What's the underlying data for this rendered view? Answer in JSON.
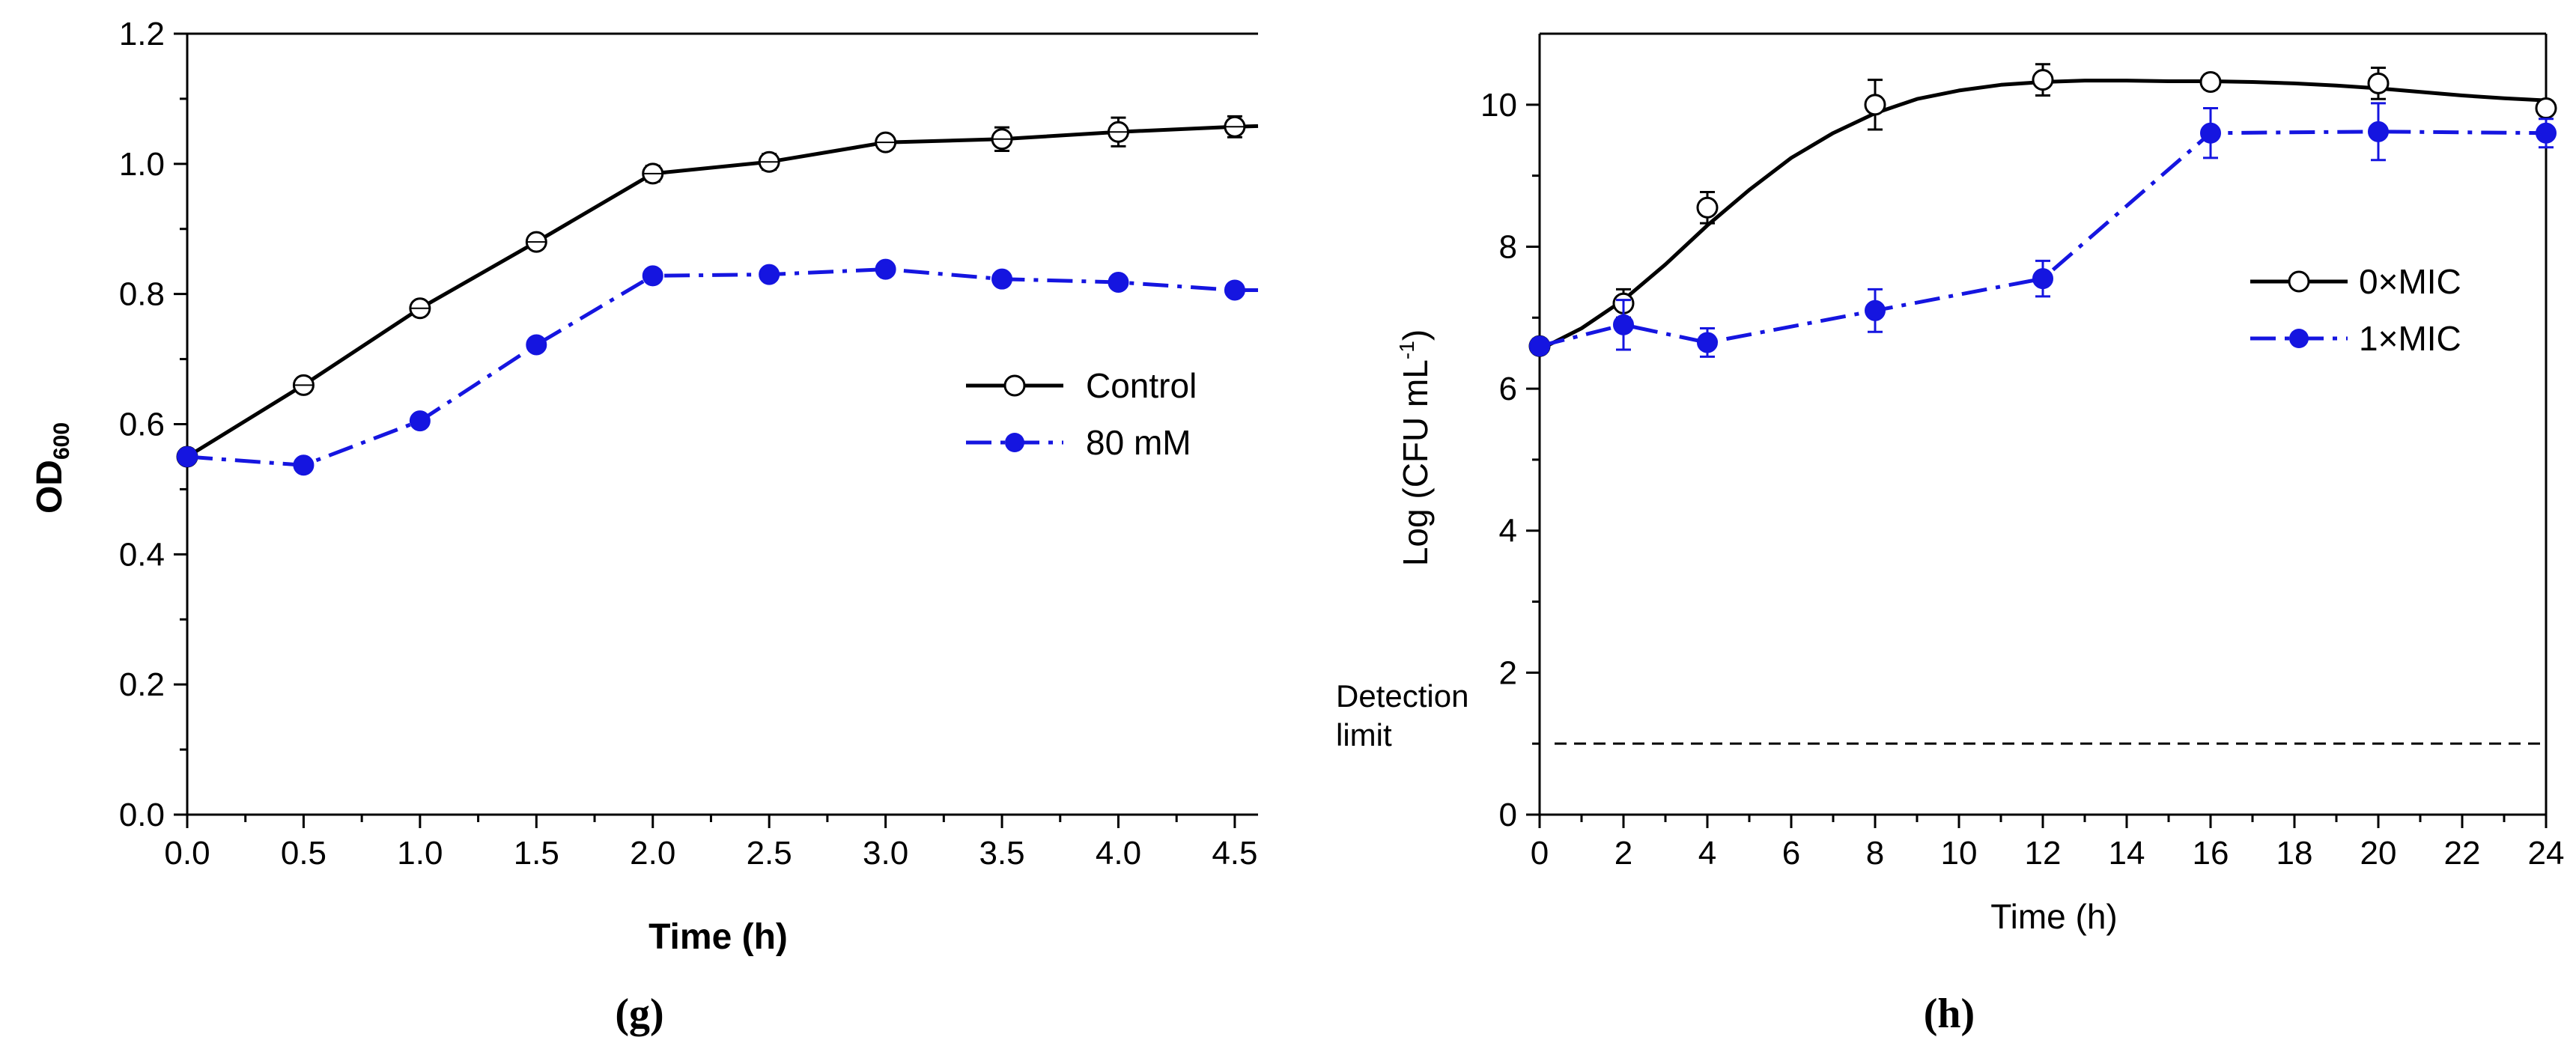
{
  "chart_data": [
    {
      "type": "line",
      "panel_label": "(g)",
      "xlabel": "Time (h)",
      "ylabel": "OD",
      "ylabel_sub": "600",
      "xlim": [
        0,
        4.6
      ],
      "ylim": [
        0,
        1.2
      ],
      "xticks": [
        "0.0",
        "0.5",
        "1.0",
        "1.5",
        "2.0",
        "2.5",
        "3.0",
        "3.5",
        "4.0",
        "4.5"
      ],
      "yticks": [
        "0.0",
        "0.2",
        "0.4",
        "0.6",
        "0.8",
        "1.0",
        "1.2"
      ],
      "legend_position": "center-right",
      "series": [
        {
          "name": "Control",
          "color": "#000000",
          "marker": "open-circle",
          "line": "solid",
          "x": [
            0,
            0.5,
            1.0,
            1.5,
            2.0,
            2.5,
            3.0,
            3.5,
            4.0,
            4.5,
            4.6
          ],
          "y": [
            0.55,
            0.66,
            0.778,
            0.88,
            0.985,
            1.003,
            1.033,
            1.038,
            1.049,
            1.057,
            1.058
          ],
          "err": [
            0.0,
            0.008,
            0.008,
            0.008,
            0.012,
            0.012,
            0.01,
            0.018,
            0.022,
            0.016,
            0
          ],
          "markers": [
            true,
            true,
            true,
            true,
            true,
            true,
            true,
            true,
            true,
            true,
            false
          ]
        },
        {
          "name": "80 mM",
          "color": "#1515e0",
          "marker": "filled-circle",
          "line": "dash-dot",
          "x": [
            0,
            0.5,
            1.0,
            1.5,
            2.0,
            2.5,
            3.0,
            3.5,
            4.0,
            4.5,
            4.6
          ],
          "y": [
            0.55,
            0.537,
            0.605,
            0.722,
            0.828,
            0.83,
            0.838,
            0.823,
            0.818,
            0.806,
            0.806
          ],
          "err": [
            0,
            0,
            0,
            0,
            0,
            0,
            0,
            0,
            0,
            0,
            0
          ],
          "markers": [
            true,
            true,
            true,
            true,
            true,
            true,
            true,
            true,
            true,
            true,
            false
          ]
        }
      ]
    },
    {
      "type": "line",
      "panel_label": "(h)",
      "xlabel": "Time (h)",
      "ylabel": "Log (CFU mL",
      "ylabel_sup": "-1",
      "ylabel_end": ")",
      "xlim": [
        0,
        24
      ],
      "ylim": [
        0,
        11
      ],
      "xticks": [
        "0",
        "2",
        "4",
        "6",
        "8",
        "10",
        "12",
        "14",
        "16",
        "18",
        "20",
        "22",
        "24"
      ],
      "yticks": [
        "0",
        "2",
        "4",
        "6",
        "8",
        "10"
      ],
      "legend_position": "center-right",
      "annotation": {
        "line1": "Detection",
        "line2": "limit",
        "y": 1.0
      },
      "series": [
        {
          "name": "0×MIC",
          "color": "#000000",
          "marker": "open-circle",
          "line": "solid",
          "x": [
            0,
            2,
            4,
            8,
            12,
            16,
            20,
            24
          ],
          "y": [
            6.6,
            7.2,
            8.55,
            10.0,
            10.35,
            10.32,
            10.3,
            9.95
          ],
          "err": [
            0.1,
            0.2,
            0.22,
            0.35,
            0.22,
            0.1,
            0.22,
            0.1
          ],
          "curve_x": [
            0,
            1,
            2,
            3,
            4,
            5,
            6,
            7,
            8,
            9,
            10,
            11,
            12,
            13,
            14,
            15,
            16,
            17,
            18,
            19,
            20,
            21,
            22,
            23,
            24
          ],
          "curve_y": [
            6.55,
            6.85,
            7.25,
            7.75,
            8.3,
            8.8,
            9.25,
            9.6,
            9.88,
            10.08,
            10.2,
            10.28,
            10.32,
            10.34,
            10.34,
            10.33,
            10.33,
            10.32,
            10.3,
            10.27,
            10.23,
            10.18,
            10.13,
            10.09,
            10.06
          ]
        },
        {
          "name": "1×MIC",
          "color": "#1515e0",
          "marker": "filled-circle",
          "line": "dash-dot",
          "x": [
            0,
            2,
            4,
            8,
            12,
            16,
            20,
            24
          ],
          "y": [
            6.6,
            6.9,
            6.65,
            7.1,
            7.55,
            9.6,
            9.62,
            9.6
          ],
          "err": [
            0.1,
            0.35,
            0.2,
            0.3,
            0.25,
            0.35,
            0.4,
            0.2
          ]
        }
      ]
    }
  ]
}
